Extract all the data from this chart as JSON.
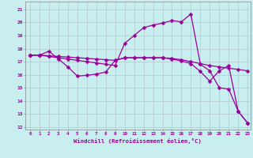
{
  "xlabel": "Windchill (Refroidissement éolien,°C)",
  "bg_color": "#c8eef0",
  "line_color": "#990099",
  "grid_color": "#b0c8cc",
  "xlim": [
    -0.5,
    23.3
  ],
  "ylim": [
    11.8,
    21.6
  ],
  "xticks": [
    0,
    1,
    2,
    3,
    4,
    5,
    6,
    7,
    8,
    9,
    10,
    11,
    12,
    13,
    14,
    15,
    16,
    17,
    18,
    19,
    20,
    21,
    22,
    23
  ],
  "yticks": [
    12,
    13,
    14,
    15,
    16,
    17,
    18,
    19,
    20,
    21
  ],
  "line_peaked_x": [
    0,
    1,
    2,
    3,
    4,
    5,
    6,
    7,
    8,
    9,
    10,
    11,
    12,
    13,
    14,
    15,
    16,
    17,
    18,
    19,
    20,
    21,
    22,
    23
  ],
  "line_peaked_y": [
    17.5,
    17.5,
    17.4,
    17.3,
    17.2,
    17.1,
    17.0,
    16.9,
    16.8,
    16.7,
    18.4,
    19.0,
    19.6,
    19.8,
    19.95,
    20.15,
    20.05,
    20.65,
    16.8,
    16.3,
    15.0,
    14.9,
    13.2,
    12.3
  ],
  "line_flat_x": [
    0,
    1,
    2,
    3,
    4,
    5,
    6,
    7,
    8,
    9,
    10,
    11,
    12,
    13,
    14,
    15,
    16,
    17,
    18,
    19,
    20,
    21,
    22,
    23
  ],
  "line_flat_y": [
    17.5,
    17.5,
    17.45,
    17.4,
    17.35,
    17.3,
    17.25,
    17.2,
    17.15,
    17.1,
    17.3,
    17.3,
    17.3,
    17.3,
    17.3,
    17.25,
    17.15,
    17.0,
    16.85,
    16.7,
    16.6,
    16.5,
    16.4,
    16.3
  ],
  "line_dip_x": [
    0,
    1,
    2,
    3,
    4,
    5,
    6,
    7,
    8,
    9,
    10,
    11,
    12,
    13,
    14,
    15,
    16,
    17,
    18,
    19,
    20,
    21,
    22,
    23
  ],
  "line_dip_y": [
    17.5,
    17.5,
    17.8,
    17.2,
    16.6,
    15.9,
    15.95,
    16.05,
    16.2,
    17.1,
    17.3,
    17.3,
    17.3,
    17.3,
    17.3,
    17.2,
    17.05,
    16.85,
    16.25,
    15.5,
    16.3,
    16.7,
    13.2,
    12.3
  ]
}
